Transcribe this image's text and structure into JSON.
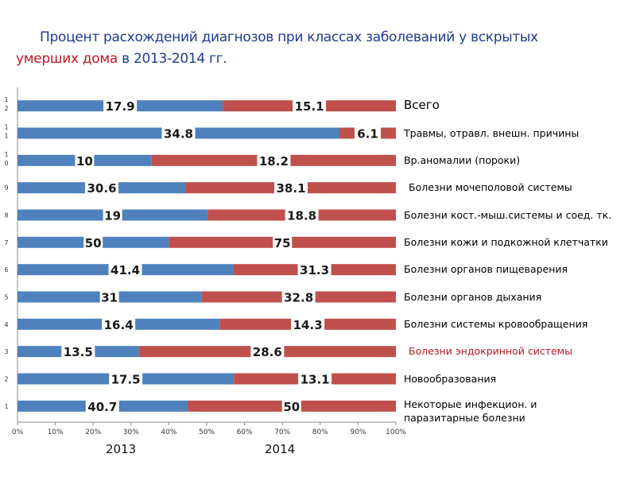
{
  "title": {
    "part1": "Процент расхождений диагнозов при классах заболеваний у вскрытых",
    "part2_red": "умерших дома",
    "part3": " в 2013-2014 гг."
  },
  "colors": {
    "series_2013": "#4f81bd",
    "series_2014": "#c0504d",
    "title_blue": "#1f3a93",
    "accent_red": "#c0171f"
  },
  "year_labels": [
    "2013",
    "2014"
  ],
  "category_labels": [
    "Некоторые инфекцион. и паразитарные болезни",
    "Новообразования",
    "Болезни эндокринной системы",
    "Болезни системы кровообращения",
    "Болезни органов дыхания",
    "Болезни органов пищеварения",
    "Болезни кожи и подкожной клетчатки",
    "Болезни кост.-мыш.системы и соед. тк.",
    "Болезни мочеполовой системы",
    "Вр.аномалии (пороки)",
    "Травмы, отравл. внешн. причины",
    "Всего"
  ],
  "chart_data": {
    "type": "bar",
    "subtype": "stacked-100-horizontal",
    "categories": [
      "1",
      "2",
      "3",
      "4",
      "5",
      "6",
      "7",
      "8",
      "9",
      "10",
      "11",
      "12"
    ],
    "series": [
      {
        "name": "2013",
        "values": [
          40.7,
          17.5,
          13.5,
          16.4,
          31,
          41.4,
          50,
          19,
          30.6,
          10,
          34.8,
          17.9
        ]
      },
      {
        "name": "2014",
        "values": [
          50,
          13.1,
          28.6,
          14.3,
          32.8,
          31.3,
          75,
          18.8,
          38.1,
          18.2,
          6.1,
          15.1
        ]
      }
    ],
    "xticks": [
      "0%",
      "10%",
      "20%",
      "30%",
      "40%",
      "50%",
      "60%",
      "70%",
      "80%",
      "90%",
      "100%"
    ],
    "xlim": [
      0,
      100
    ],
    "legend": "none",
    "grid": false
  }
}
